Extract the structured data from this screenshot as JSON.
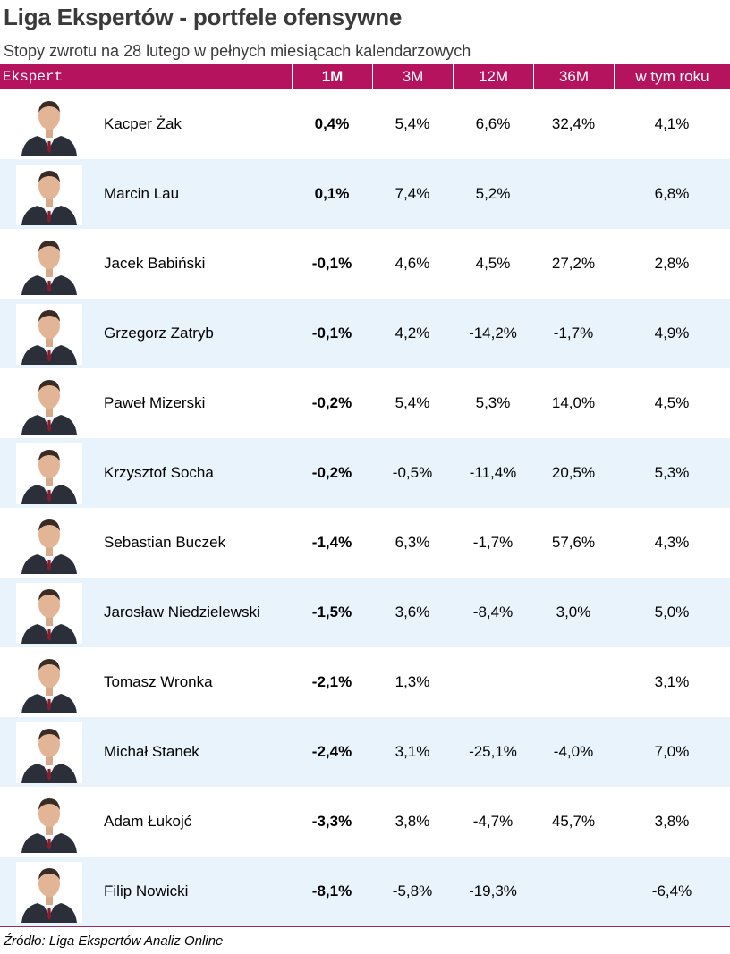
{
  "title": "Liga Ekspertów - portfele ofensywne",
  "subtitle": "Stopy zwrotu na 28 lutego w pełnych miesiącach kalendarzowych",
  "headers": {
    "expert": "Ekspert",
    "m1": "1M",
    "m3": "3M",
    "m12": "12M",
    "m36": "36M",
    "ytd": "w tym roku"
  },
  "colors": {
    "header_bg": "#b5135d",
    "row_alt_bg": "#e9f3fc",
    "title": "#3a3a3a"
  },
  "rows": [
    {
      "name": "Kacper Żak",
      "m1": "0,4%",
      "m3": "5,4%",
      "m12": "6,6%",
      "m36": "32,4%",
      "ytd": "4,1%",
      "icon": "portrait-icon"
    },
    {
      "name": "Marcin Lau",
      "m1": "0,1%",
      "m3": "7,4%",
      "m12": "5,2%",
      "m36": "",
      "ytd": "6,8%",
      "icon": "portrait-icon"
    },
    {
      "name": "Jacek Babiński",
      "m1": "-0,1%",
      "m3": "4,6%",
      "m12": "4,5%",
      "m36": "27,2%",
      "ytd": "2,8%",
      "icon": "portrait-icon"
    },
    {
      "name": "Grzegorz Zatryb",
      "m1": "-0,1%",
      "m3": "4,2%",
      "m12": "-14,2%",
      "m36": "-1,7%",
      "ytd": "4,9%",
      "icon": "portrait-icon"
    },
    {
      "name": "Paweł Mizerski",
      "m1": "-0,2%",
      "m3": "5,4%",
      "m12": "5,3%",
      "m36": "14,0%",
      "ytd": "4,5%",
      "icon": "portrait-icon"
    },
    {
      "name": "Krzysztof Socha",
      "m1": "-0,2%",
      "m3": "-0,5%",
      "m12": "-11,4%",
      "m36": "20,5%",
      "ytd": "5,3%",
      "icon": "portrait-icon"
    },
    {
      "name": "Sebastian Buczek",
      "m1": "-1,4%",
      "m3": "6,3%",
      "m12": "-1,7%",
      "m36": "57,6%",
      "ytd": "4,3%",
      "icon": "portrait-icon"
    },
    {
      "name": "Jarosław Niedzielewski",
      "m1": "-1,5%",
      "m3": "3,6%",
      "m12": "-8,4%",
      "m36": "3,0%",
      "ytd": "5,0%",
      "icon": "portrait-icon"
    },
    {
      "name": "Tomasz Wronka",
      "m1": "-2,1%",
      "m3": "1,3%",
      "m12": "",
      "m36": "",
      "ytd": "3,1%",
      "icon": "portrait-icon"
    },
    {
      "name": "Michał Stanek",
      "m1": "-2,4%",
      "m3": "3,1%",
      "m12": "-25,1%",
      "m36": "-4,0%",
      "ytd": "7,0%",
      "icon": "portrait-icon"
    },
    {
      "name": "Adam Łukojć",
      "m1": "-3,3%",
      "m3": "3,8%",
      "m12": "-4,7%",
      "m36": "45,7%",
      "ytd": "3,8%",
      "icon": "portrait-icon"
    },
    {
      "name": "Filip Nowicki",
      "m1": "-8,1%",
      "m3": "-5,8%",
      "m12": "-19,3%",
      "m36": "",
      "ytd": "-6,4%",
      "icon": "portrait-icon"
    }
  ],
  "source": "Źródło: Liga Ekspertów Analiz Online"
}
